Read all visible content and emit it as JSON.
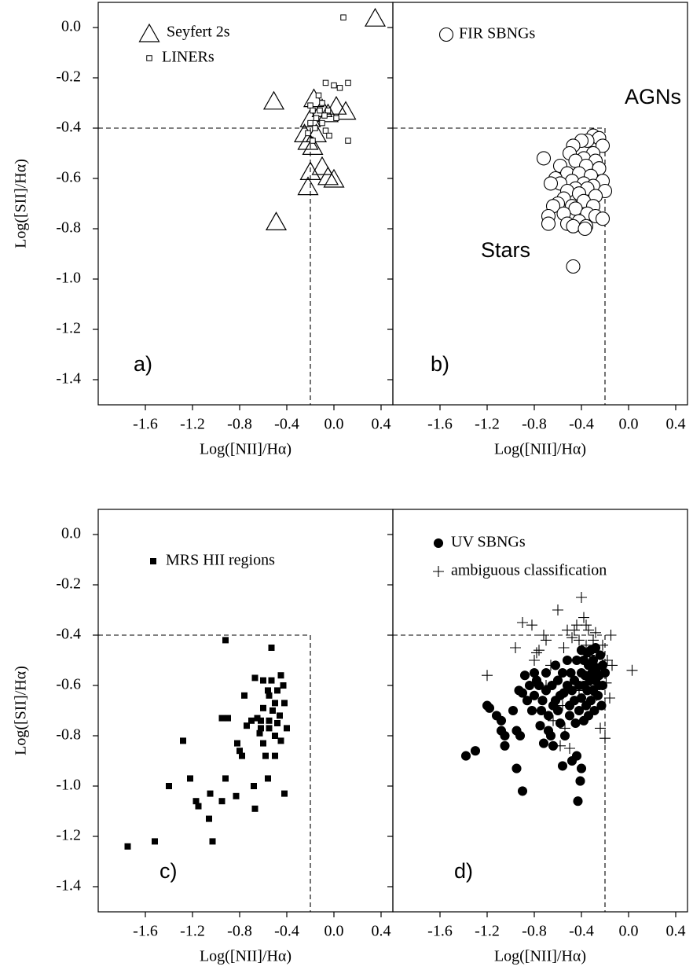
{
  "chart_data": [
    {
      "type": "scatter",
      "xlabel": "Log([NII]/Hα)",
      "ylabel": "Log([SII]/Hα)",
      "xlim": [
        -2.0,
        0.5
      ],
      "ylim": [
        -1.5,
        0.1
      ],
      "xticks": [
        -1.6,
        -1.2,
        -0.8,
        -0.4,
        {
          "value": 0,
          "label": "0.0"
        },
        0.4
      ],
      "yticks": [
        -1.4,
        -1.2,
        {
          "value": -1,
          "label": "-1.0"
        },
        -0.8,
        -0.6,
        -0.4,
        -0.2,
        {
          "value": 0,
          "label": "0.0"
        }
      ],
      "reference": {
        "x": -0.2,
        "y": -0.4
      },
      "annotations": [
        "a)"
      ],
      "series": [
        {
          "name": "Seyfert 2s",
          "color": "#000000",
          "marker": "triangle",
          "filled": false,
          "x": [
            0.35,
            -0.51,
            -0.49,
            -0.17,
            -0.1,
            -0.05,
            0.02,
            0.1,
            -0.2,
            -0.15,
            -0.22,
            -0.18,
            -0.1,
            -0.2,
            -0.22,
            -0.05,
            0.0,
            -0.25
          ],
          "values": [
            0.04,
            -0.29,
            -0.77,
            -0.28,
            -0.32,
            -0.34,
            -0.31,
            -0.33,
            -0.36,
            -0.42,
            -0.45,
            -0.47,
            -0.55,
            -0.57,
            -0.63,
            -0.59,
            -0.6,
            -0.42
          ]
        },
        {
          "name": "LINERs",
          "color": "#000000",
          "marker": "square",
          "filled": false,
          "x": [
            0.08,
            -0.07,
            0.0,
            0.05,
            0.12,
            -0.13,
            -0.1,
            -0.2,
            -0.18,
            -0.05,
            0.02,
            -0.15,
            -0.2,
            -0.1,
            -0.16,
            -0.07,
            -0.22,
            -0.04,
            -0.18,
            0.12,
            -0.08,
            -0.12
          ],
          "values": [
            0.04,
            -0.22,
            -0.23,
            -0.24,
            -0.22,
            -0.27,
            -0.3,
            -0.31,
            -0.33,
            -0.33,
            -0.36,
            -0.36,
            -0.38,
            -0.38,
            -0.4,
            -0.41,
            -0.42,
            -0.43,
            -0.45,
            -0.45,
            -0.35,
            -0.33
          ]
        }
      ]
    },
    {
      "type": "scatter",
      "xlabel": "Log([NII]/Hα)",
      "xlim": [
        -2.0,
        0.5
      ],
      "ylim": [
        -1.5,
        0.1
      ],
      "xticks": [
        -1.6,
        -1.2,
        -0.8,
        -0.4,
        {
          "value": 0,
          "label": "0.0"
        },
        0.4
      ],
      "yticks": [
        -1.4,
        -1.2,
        -1,
        -0.8,
        -0.6,
        -0.4,
        -0.2,
        0
      ],
      "reference": {
        "x": -0.2,
        "y": -0.4
      },
      "annotations": [
        "b)",
        "AGNs",
        "Stars"
      ],
      "series": [
        {
          "name": "FIR SBNGs",
          "color": "#000000",
          "marker": "circle",
          "filled": false,
          "x": [
            -0.3,
            -0.25,
            -0.35,
            -0.4,
            -0.47,
            -0.22,
            -0.5,
            -0.3,
            -0.38,
            -0.72,
            -0.28,
            -0.45,
            -0.58,
            -0.36,
            -0.25,
            -0.52,
            -0.42,
            -0.32,
            -0.62,
            -0.48,
            -0.22,
            -0.38,
            -0.58,
            -0.66,
            -0.3,
            -0.45,
            -0.35,
            -0.2,
            -0.52,
            -0.42,
            -0.28,
            -0.55,
            -0.38,
            -0.6,
            -0.48,
            -0.3,
            -0.64,
            -0.45,
            -0.35,
            -0.55,
            -0.28,
            -0.68,
            -0.22,
            -0.42,
            -0.52,
            -0.68,
            -0.36,
            -0.47,
            -0.37,
            -0.47
          ],
          "values": [
            -0.43,
            -0.44,
            -0.45,
            -0.45,
            -0.47,
            -0.47,
            -0.5,
            -0.5,
            -0.52,
            -0.52,
            -0.53,
            -0.53,
            -0.55,
            -0.55,
            -0.56,
            -0.58,
            -0.58,
            -0.59,
            -0.6,
            -0.61,
            -0.61,
            -0.62,
            -0.62,
            -0.62,
            -0.63,
            -0.64,
            -0.64,
            -0.65,
            -0.65,
            -0.66,
            -0.67,
            -0.68,
            -0.69,
            -0.7,
            -0.71,
            -0.71,
            -0.71,
            -0.72,
            -0.74,
            -0.74,
            -0.75,
            -0.75,
            -0.76,
            -0.77,
            -0.78,
            -0.78,
            -0.79,
            -0.79,
            -0.8,
            -0.95
          ]
        }
      ]
    },
    {
      "type": "scatter",
      "xlabel": "Log([NII]/Hα)",
      "ylabel": "Log([SII]/Hα)",
      "xlim": [
        -2.0,
        0.5
      ],
      "ylim": [
        -1.5,
        0.1
      ],
      "xticks": [
        -1.6,
        -1.2,
        -0.8,
        -0.4,
        {
          "value": 0,
          "label": "0.0"
        },
        0.4
      ],
      "yticks": [
        -1.4,
        -1.2,
        {
          "value": -1,
          "label": "-1.0"
        },
        -0.8,
        -0.6,
        -0.4,
        -0.2,
        {
          "value": 0,
          "label": "0.0"
        }
      ],
      "reference": {
        "x": -0.2,
        "y": -0.4
      },
      "annotations": [
        "c)"
      ],
      "series": [
        {
          "name": "MRS HII regions",
          "color": "#000000",
          "marker": "square",
          "filled": true,
          "x": [
            -1.75,
            -1.52,
            -1.28,
            -1.4,
            -1.22,
            -1.17,
            -1.15,
            -1.05,
            -1.06,
            -1.03,
            -0.95,
            -0.9,
            -0.92,
            -0.95,
            -0.92,
            -0.83,
            -0.82,
            -0.8,
            -0.78,
            -0.76,
            -0.74,
            -0.7,
            -0.68,
            -0.67,
            -0.67,
            -0.65,
            -0.63,
            -0.62,
            -0.6,
            -0.6,
            -0.6,
            -0.58,
            -0.56,
            -0.55,
            -0.55,
            -0.55,
            -0.53,
            -0.53,
            -0.52,
            -0.5,
            -0.5,
            -0.5,
            -0.48,
            -0.48,
            -0.46,
            -0.45,
            -0.45,
            -0.43,
            -0.42,
            -0.4,
            -0.42,
            -0.56,
            -0.62
          ],
          "values": [
            -1.24,
            -1.22,
            -0.82,
            -1.0,
            -0.97,
            -1.06,
            -1.08,
            -1.03,
            -1.13,
            -1.22,
            -0.73,
            -0.73,
            -0.97,
            -1.06,
            -0.42,
            -1.04,
            -0.83,
            -0.86,
            -0.88,
            -0.64,
            -0.76,
            -0.74,
            -1.0,
            -1.09,
            -0.57,
            -0.73,
            -0.79,
            -0.77,
            -0.69,
            -0.58,
            -0.83,
            -0.88,
            -0.62,
            -0.64,
            -0.74,
            -0.77,
            -0.58,
            -0.45,
            -0.7,
            -0.67,
            -0.8,
            -0.88,
            -0.75,
            -0.62,
            -0.72,
            -0.56,
            -0.82,
            -0.6,
            -0.67,
            -0.77,
            -1.03,
            -0.97,
            -0.74
          ]
        }
      ]
    },
    {
      "type": "scatter",
      "xlabel": "Log([NII]/Hα)",
      "xlim": [
        -2.0,
        0.5
      ],
      "ylim": [
        -1.5,
        0.1
      ],
      "xticks": [
        -1.6,
        -1.2,
        -0.8,
        -0.4,
        {
          "value": 0,
          "label": "0.0"
        },
        0.4
      ],
      "yticks": [
        -1.4,
        -1.2,
        -1,
        -0.8,
        -0.6,
        -0.4,
        -0.2,
        0
      ],
      "reference": {
        "x": -0.2,
        "y": -0.4
      },
      "annotations": [
        "d)"
      ],
      "series": [
        {
          "name": "UV SBNGs",
          "color": "#000000",
          "marker": "circle",
          "filled": true,
          "x": [
            -1.38,
            -1.3,
            -1.2,
            -1.18,
            -1.12,
            -1.08,
            -1.08,
            -1.05,
            -1.05,
            -0.98,
            -0.95,
            -0.95,
            -0.93,
            -0.92,
            -0.9,
            -0.9,
            -0.88,
            -0.86,
            -0.84,
            -0.82,
            -0.8,
            -0.78,
            -0.76,
            -0.75,
            -0.73,
            -0.72,
            -0.7,
            -0.7,
            -0.68,
            -0.68,
            -0.66,
            -0.65,
            -0.64,
            -0.62,
            -0.62,
            -0.6,
            -0.6,
            -0.58,
            -0.56,
            -0.56,
            -0.55,
            -0.54,
            -0.52,
            -0.52,
            -0.5,
            -0.5,
            -0.49,
            -0.48,
            -0.48,
            -0.46,
            -0.46,
            -0.45,
            -0.44,
            -0.44,
            -0.43,
            -0.42,
            -0.42,
            -0.41,
            -0.4,
            -0.4,
            -0.4,
            -0.4,
            -0.38,
            -0.38,
            -0.38,
            -0.37,
            -0.36,
            -0.35,
            -0.35,
            -0.34,
            -0.34,
            -0.33,
            -0.32,
            -0.32,
            -0.31,
            -0.3,
            -0.3,
            -0.29,
            -0.28,
            -0.28,
            -0.27,
            -0.26,
            -0.25,
            -0.25,
            -0.23,
            -0.22,
            -0.22,
            -0.2,
            -0.24,
            -0.58,
            -0.64,
            -0.8,
            -0.74
          ],
          "values": [
            -0.88,
            -0.86,
            -0.68,
            -0.69,
            -0.72,
            -0.74,
            -0.78,
            -0.8,
            -0.84,
            -0.7,
            -0.78,
            -0.93,
            -0.62,
            -0.8,
            -0.63,
            -1.02,
            -0.56,
            -0.66,
            -0.6,
            -0.7,
            -0.64,
            -0.58,
            -0.6,
            -0.76,
            -0.66,
            -0.83,
            -0.55,
            -0.62,
            -0.72,
            -0.78,
            -0.8,
            -0.6,
            -0.84,
            -0.52,
            -0.66,
            -0.58,
            -0.7,
            -0.75,
            -0.55,
            -0.92,
            -0.63,
            -0.8,
            -0.5,
            -0.6,
            -0.68,
            -0.72,
            -0.55,
            -0.62,
            -0.9,
            -0.58,
            -0.66,
            -0.75,
            -0.88,
            -0.5,
            -1.06,
            -0.6,
            -0.7,
            -0.98,
            -0.46,
            -0.55,
            -0.65,
            -0.93,
            -0.5,
            -0.6,
            -0.74,
            -0.56,
            -0.68,
            -0.47,
            -0.62,
            -0.52,
            -0.72,
            -0.58,
            -0.66,
            -0.46,
            -0.55,
            -0.62,
            -0.5,
            -0.7,
            -0.58,
            -0.45,
            -0.53,
            -0.64,
            -0.56,
            -0.6,
            -0.68,
            -0.52,
            -0.6,
            -0.55,
            -0.48,
            -0.64,
            -0.68,
            -0.55,
            -0.7
          ]
        },
        {
          "name": "ambiguous classification",
          "color": "#000000",
          "marker": "plus",
          "filled": false,
          "x": [
            -1.2,
            -0.96,
            -0.9,
            -0.82,
            -0.8,
            -0.78,
            -0.76,
            -0.72,
            -0.7,
            -0.7,
            -0.66,
            -0.64,
            -0.6,
            -0.58,
            -0.56,
            -0.55,
            -0.54,
            -0.52,
            -0.5,
            -0.48,
            -0.46,
            -0.44,
            -0.42,
            -0.4,
            -0.38,
            -0.36,
            -0.36,
            -0.34,
            -0.33,
            -0.3,
            -0.28,
            -0.27,
            -0.25,
            -0.24,
            -0.23,
            -0.22,
            -0.2,
            -0.19,
            -0.18,
            -0.16,
            -0.15,
            -0.14,
            0.03,
            -0.32,
            -0.42
          ],
          "values": [
            -0.56,
            -0.45,
            -0.35,
            -0.36,
            -0.5,
            -0.47,
            -0.46,
            -0.4,
            -0.42,
            -0.6,
            -0.52,
            -0.74,
            -0.3,
            -0.84,
            -0.68,
            -0.45,
            -0.77,
            -0.38,
            -0.85,
            -0.41,
            -0.38,
            -0.36,
            -0.42,
            -0.25,
            -0.33,
            -0.36,
            -0.44,
            -0.38,
            -0.48,
            -0.42,
            -0.39,
            -0.64,
            -0.47,
            -0.77,
            -0.55,
            -0.44,
            -0.81,
            -0.59,
            -0.5,
            -0.65,
            -0.4,
            -0.52,
            -0.54,
            -0.6,
            -0.62
          ]
        }
      ]
    }
  ]
}
